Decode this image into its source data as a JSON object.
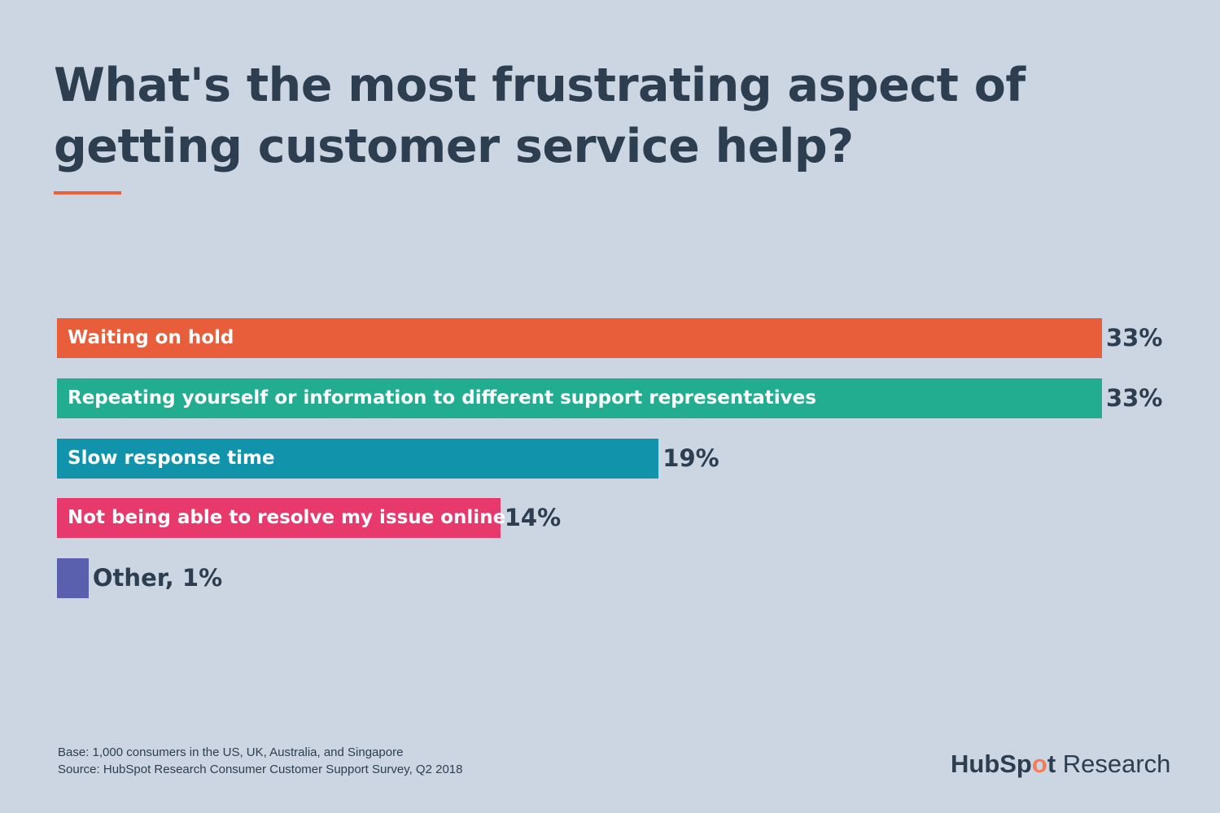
{
  "chart_data": {
    "type": "bar",
    "orientation": "horizontal",
    "title": "What's the most frustrating aspect of getting customer service help?",
    "categories": [
      "Waiting on hold",
      "Repeating yourself or information to different support representatives",
      "Slow response time",
      "Not being able to resolve my issue online",
      "Other"
    ],
    "values": [
      33,
      33,
      19,
      14,
      1
    ],
    "unit": "%",
    "colors": [
      "#e85d3a",
      "#22ad91",
      "#1193ac",
      "#e8396c",
      "#5a5fae"
    ],
    "xlim": [
      0,
      33
    ],
    "grid": false
  },
  "footer": {
    "base": "Base: 1,000 consumers in the US, UK, Australia, and Singapore",
    "source": "Source: HubSpot Research Consumer Customer Support Survey, Q2 2018"
  },
  "logo": {
    "brand": "HubSpot",
    "suffix": "Research"
  },
  "colors": {
    "background": "#cbd6e2",
    "text": "#2d3e50",
    "accent": "#e8603c"
  }
}
